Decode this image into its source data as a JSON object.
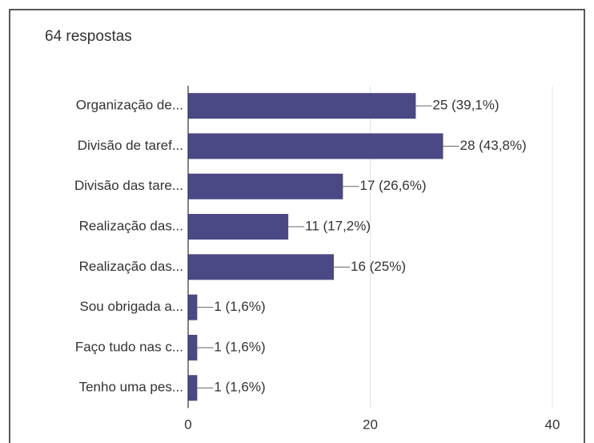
{
  "chart_data": {
    "type": "bar",
    "orientation": "horizontal",
    "title": "64 respostas",
    "categories": [
      "Organização de...",
      "Divisão de taref...",
      "Divisão das tare...",
      "Realização das...",
      "Realização das...",
      "Sou obrigada a...",
      "Faço tudo nas c...",
      "Tenho uma pes..."
    ],
    "values": [
      25,
      28,
      17,
      11,
      16,
      1,
      1,
      1
    ],
    "value_labels": [
      "25 (39,1%)",
      "28 (43,8%)",
      "17 (26,6%)",
      "11 (17,2%)",
      "16 (25%)",
      "1 (1,6%)",
      "1 (1,6%)",
      "1 (1,6%)"
    ],
    "color": "#4b4886",
    "xlim": [
      0,
      40
    ],
    "xticks": [
      0,
      20,
      40
    ],
    "grid": true
  }
}
